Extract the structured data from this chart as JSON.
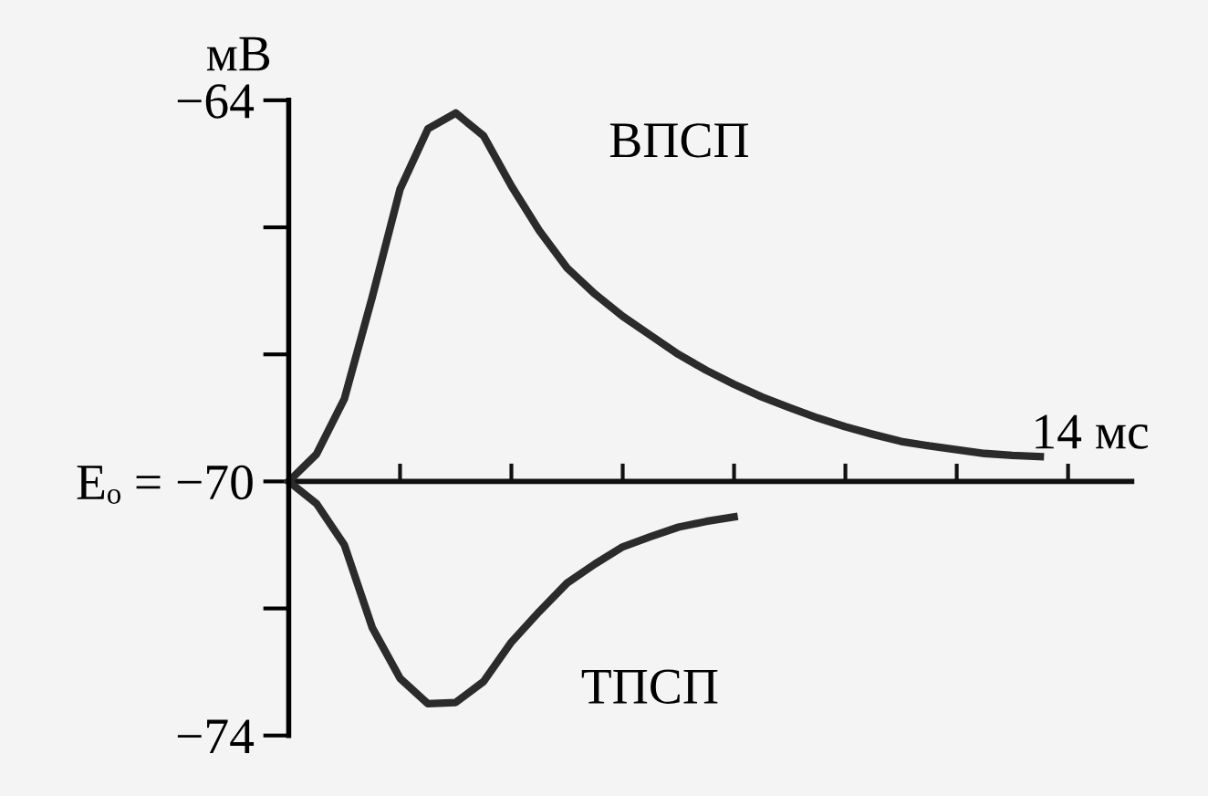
{
  "chart_data": {
    "type": "line",
    "ylabel": "мВ",
    "ylim": [
      -74,
      -64
    ],
    "categories": [
      null,
      null,
      null,
      null,
      null,
      null,
      null,
      null,
      null,
      null,
      null,
      null,
      null,
      null,
      null,
      null,
      null,
      null,
      null,
      null,
      null,
      null,
      null,
      null,
      null,
      null,
      null,
      null
    ],
    "yticks": [
      {
        "value": -74,
        "label": "−74"
      },
      {
        "value": -72,
        "label": null
      },
      {
        "value": -70,
        "label": "Eₒ = −70"
      },
      {
        "value": -68,
        "label": null
      },
      {
        "value": -66,
        "label": null
      },
      {
        "value": -64,
        "label": "−64"
      }
    ],
    "annotations": [
      "14 мс"
    ],
    "ref_lines": [
      {
        "axis": "y",
        "value": -70,
        "color": "#111111"
      }
    ],
    "grid": false,
    "legend": false,
    "series": [
      {
        "name": "ВПСП",
        "color": "#2b2b2b",
        "values": [
          -70,
          -69.57,
          -68.7,
          -67.1,
          -65.4,
          -64.45,
          -64.2,
          -64.56,
          -65.35,
          -66.05,
          -66.64,
          -67.05,
          -67.4,
          -67.7,
          -68.0,
          -68.25,
          -68.47,
          -68.67,
          -68.84,
          -69.0,
          -69.14,
          -69.26,
          -69.37,
          -69.44,
          -69.5,
          -69.56,
          -69.59,
          -69.61
        ]
      },
      {
        "name": "ТПСП",
        "color": "#2b2b2b",
        "values": [
          -70,
          -70.35,
          -71.0,
          -72.3,
          -73.1,
          -73.5,
          -73.48,
          -73.15,
          -72.53,
          -72.05,
          -71.6,
          -71.3,
          -71.03,
          -70.87,
          -70.72,
          -70.63,
          -70.56,
          null,
          null,
          null,
          null,
          null,
          null,
          null,
          null,
          null,
          null,
          null
        ]
      }
    ]
  }
}
